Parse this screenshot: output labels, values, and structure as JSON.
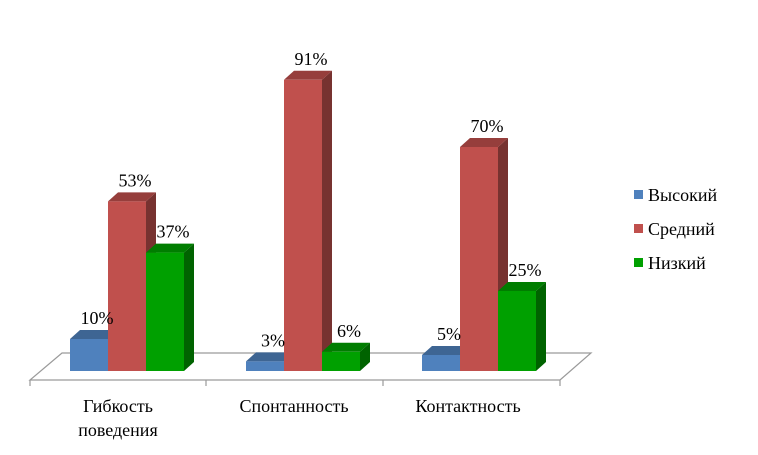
{
  "chart_data": {
    "type": "bar",
    "title": "",
    "categories": [
      "Гибкость поведения",
      "Спонтанность",
      "Контактность"
    ],
    "category_lines": [
      [
        "Гибкость",
        "поведения"
      ],
      [
        "Спонтанность"
      ],
      [
        "Контактность"
      ]
    ],
    "series": [
      {
        "name": "Высокий",
        "values": [
          10,
          3,
          5
        ],
        "color": "#4F81BD"
      },
      {
        "name": "Средний",
        "values": [
          53,
          91,
          70
        ],
        "color": "#C0504D"
      },
      {
        "name": "Низкий",
        "values": [
          37,
          6,
          25
        ],
        "color": "#00A000"
      }
    ],
    "value_suffix": "%",
    "ylim": [
      0,
      100
    ],
    "legend_position": "right",
    "grid": false,
    "style": "3d-column"
  }
}
